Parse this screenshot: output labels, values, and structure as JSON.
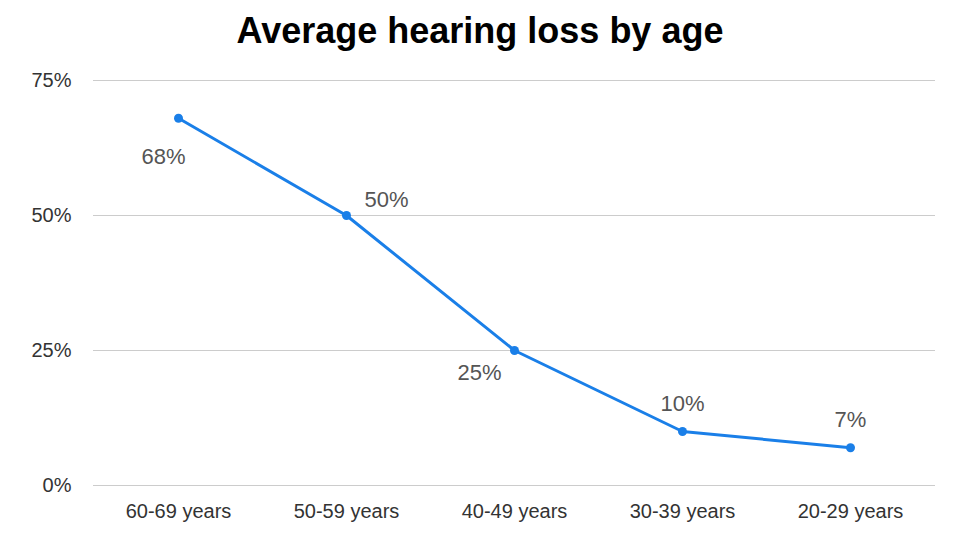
{
  "chart_data": {
    "type": "line",
    "title": "Average hearing loss by age",
    "categories": [
      "60-69 years",
      "50-59 years",
      "40-49 years",
      "30-39 years",
      "20-29 years"
    ],
    "values": [
      68,
      50,
      25,
      10,
      7
    ],
    "value_labels": [
      "68%",
      "50%",
      "25%",
      "10%",
      "7%"
    ],
    "data_labels": true,
    "color": "#1a7fe8",
    "marker": "circle",
    "ylim": [
      0,
      75
    ],
    "yticks": [
      {
        "value": 0,
        "label": "0%"
      },
      {
        "value": 25,
        "label": "25%"
      },
      {
        "value": 50,
        "label": "50%"
      },
      {
        "value": 75,
        "label": "75%"
      }
    ],
    "grid": true
  }
}
